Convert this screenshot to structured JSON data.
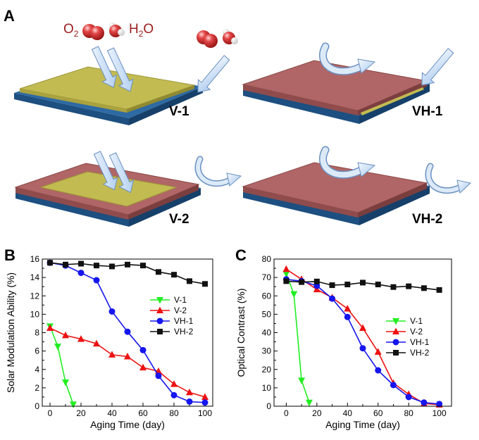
{
  "panels": {
    "a": "A",
    "b": "B",
    "c": "C"
  },
  "schematic": {
    "o2_main": "O",
    "o2_sub": "2",
    "h2o_h": "H",
    "h2o_sub": "2",
    "h2o_o": "O",
    "labels": [
      "V-1",
      "VH-1",
      "V-2",
      "VH-2"
    ]
  },
  "colors": {
    "v1": "#22ee22",
    "v2": "#ee1111",
    "vh1": "#1515ee",
    "vh2": "#111111",
    "film_yellow": "#bdb64a",
    "film_red": "#a85c5c",
    "substrate_blue": "#3d7fb8"
  },
  "chart_data": [
    {
      "type": "line",
      "panel": "B",
      "xlabel": "Aging Time (day)",
      "ylabel": "Solar Modulation Ability (%)",
      "xlim": [
        -5,
        105
      ],
      "ylim": [
        0,
        16
      ],
      "xticks": [
        "0",
        "20",
        "40",
        "60",
        "80",
        "100"
      ],
      "yticks": [
        "0",
        "2",
        "4",
        "6",
        "8",
        "10",
        "12",
        "14",
        "16"
      ],
      "legend_position": "right",
      "series": [
        {
          "name": "V-1",
          "marker": "triangle-down",
          "color": "#22ee22",
          "x": [
            0,
            5,
            10,
            15
          ],
          "y": [
            8.7,
            6.5,
            2.6,
            0.2
          ]
        },
        {
          "name": "V-2",
          "marker": "triangle-up",
          "color": "#ee1111",
          "x": [
            0,
            10,
            20,
            30,
            40,
            50,
            60,
            70,
            80,
            90,
            100
          ],
          "y": [
            8.5,
            7.7,
            7.3,
            6.8,
            5.6,
            5.4,
            4.2,
            3.8,
            2.4,
            1.5,
            1.0
          ]
        },
        {
          "name": "VH-1",
          "marker": "circle",
          "color": "#1515ee",
          "x": [
            0,
            10,
            20,
            30,
            40,
            50,
            60,
            70,
            80,
            90,
            100
          ],
          "y": [
            15.6,
            15.3,
            14.5,
            13.7,
            10.3,
            8.1,
            6.1,
            3.3,
            1.2,
            0.5,
            0.4
          ]
        },
        {
          "name": "VH-2",
          "marker": "square",
          "color": "#111111",
          "x": [
            0,
            10,
            20,
            30,
            40,
            50,
            60,
            70,
            80,
            90,
            100
          ],
          "y": [
            15.6,
            15.4,
            15.5,
            15.3,
            15.2,
            15.4,
            15.3,
            14.6,
            14.3,
            13.6,
            13.3
          ]
        }
      ]
    },
    {
      "type": "line",
      "panel": "C",
      "xlabel": "Aging Time (day)",
      "ylabel": "Optical Contrast (%)",
      "xlim": [
        -8,
        108
      ],
      "ylim": [
        0,
        80
      ],
      "xticks": [
        "0",
        "20",
        "40",
        "60",
        "80",
        "100"
      ],
      "yticks": [
        "0",
        "10",
        "20",
        "30",
        "40",
        "50",
        "60",
        "70",
        "80"
      ],
      "legend_position": "right",
      "series": [
        {
          "name": "V-1",
          "marker": "triangle-down",
          "color": "#22ee22",
          "x": [
            0,
            5,
            10,
            15
          ],
          "y": [
            72,
            61,
            14,
            2
          ]
        },
        {
          "name": "V-2",
          "marker": "triangle-up",
          "color": "#ee1111",
          "x": [
            0,
            10,
            20,
            30,
            40,
            50,
            60,
            70,
            80,
            90,
            100
          ],
          "y": [
            74.5,
            69,
            63.5,
            59,
            53,
            42.5,
            29.5,
            12.5,
            6.5,
            1.5,
            0.8
          ]
        },
        {
          "name": "VH-1",
          "marker": "circle",
          "color": "#1515ee",
          "x": [
            0,
            10,
            20,
            30,
            40,
            50,
            60,
            70,
            80,
            90,
            100
          ],
          "y": [
            69,
            68,
            65.5,
            58.5,
            48.5,
            31.5,
            19.5,
            11.5,
            5,
            2,
            1.2
          ]
        },
        {
          "name": "VH-2",
          "marker": "square",
          "color": "#111111",
          "x": [
            0,
            10,
            20,
            30,
            40,
            50,
            60,
            70,
            80,
            90,
            100
          ],
          "y": [
            68,
            67.5,
            67.8,
            65.8,
            66.2,
            67.2,
            66.2,
            64.8,
            65.2,
            64.2,
            63.2
          ]
        }
      ]
    }
  ]
}
